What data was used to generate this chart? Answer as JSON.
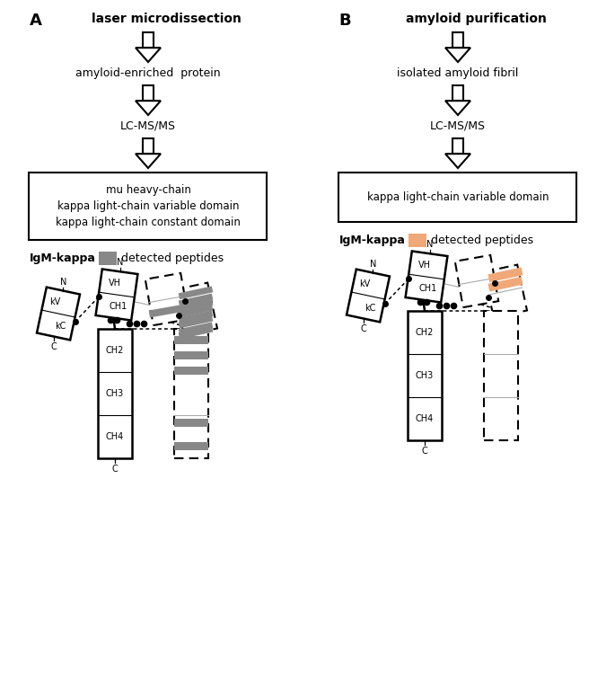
{
  "bg_color": "#ffffff",
  "panel_A": {
    "label": "A",
    "title": "laser microdissection",
    "step1": "amyloid-enriched  protein",
    "step2": "LC-MS/MS",
    "box_lines": [
      "mu heavy-chain",
      "kappa light-chain variable domain",
      "kappa light-chain constant domain"
    ],
    "legend_label": "IgM-kappa",
    "legend_text": "detected peptides",
    "legend_color": "#888888"
  },
  "panel_B": {
    "label": "B",
    "title": "amyloid purification",
    "step1": "isolated amyloid fibril",
    "step2": "LC-MS/MS",
    "box_lines": [
      "kappa light-chain variable domain"
    ],
    "legend_label": "IgM-kappa",
    "legend_text": "detected peptides",
    "legend_color": "#F0A878"
  },
  "gray_color": "#888888",
  "orange_color": "#F0A878"
}
